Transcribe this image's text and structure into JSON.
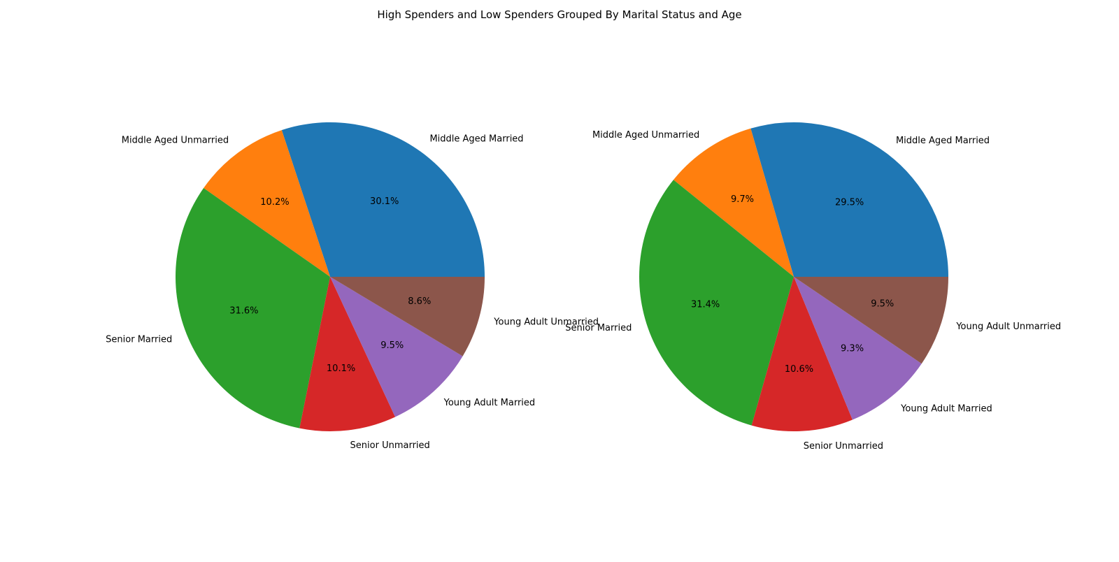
{
  "figure": {
    "title": "High Spenders and Low Spenders Grouped By Marital Status and Age"
  },
  "chart_data": [
    {
      "type": "pie",
      "title": "",
      "categories": [
        "Middle Aged Married",
        "Middle Aged Unmarried",
        "Senior Married",
        "Senior Unmarried",
        "Young Adult Married",
        "Young Adult Unmarried"
      ],
      "values": [
        30.1,
        10.2,
        31.6,
        10.1,
        9.5,
        8.6
      ],
      "value_labels": [
        "30.1%",
        "10.2%",
        "31.6%",
        "10.1%",
        "9.5%",
        "8.6%"
      ],
      "colors": [
        "#1f77b4",
        "#ff7f0e",
        "#2ca02c",
        "#d62728",
        "#9467bd",
        "#8c564b"
      ],
      "start_angle": 0,
      "direction": "counterclockwise"
    },
    {
      "type": "pie",
      "title": "",
      "categories": [
        "Middle Aged Married",
        "Middle Aged Unmarried",
        "Senior Married",
        "Senior Unmarried",
        "Young Adult Married",
        "Young Adult Unmarried"
      ],
      "values": [
        29.5,
        9.7,
        31.4,
        10.6,
        9.3,
        9.5
      ],
      "value_labels": [
        "29.5%",
        "9.7%",
        "31.4%",
        "10.6%",
        "9.3%",
        "9.5%"
      ],
      "colors": [
        "#1f77b4",
        "#ff7f0e",
        "#2ca02c",
        "#d62728",
        "#9467bd",
        "#8c564b"
      ],
      "start_angle": 0,
      "direction": "counterclockwise"
    }
  ]
}
